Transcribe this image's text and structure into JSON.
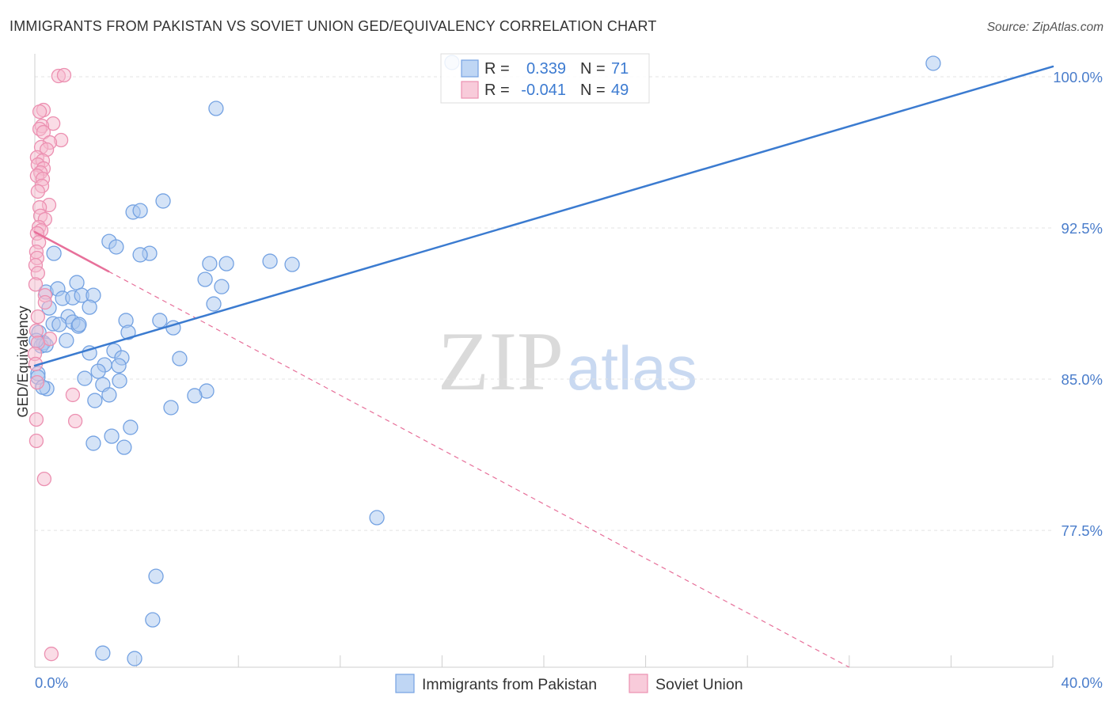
{
  "header": {
    "source": "Source: ZipAtlas.com"
  },
  "watermark": {
    "zip": "ZIP",
    "atlas": "atlas"
  },
  "legend": {
    "r_label": "R =",
    "n_label": "N ="
  },
  "colors": {
    "axis": "#cfcfcf",
    "grid": "#e3e3e3",
    "series": [
      {
        "fill": "#a9c8f0",
        "stroke": "#74a2e2",
        "line": "#3b7bd0"
      },
      {
        "fill": "#f6b9cd",
        "stroke": "#ec90b1",
        "line": "#e7709a"
      }
    ]
  },
  "chart_data": {
    "type": "scatter",
    "title": "IMMIGRANTS FROM PAKISTAN VS SOVIET UNION GED/EQUIVALENCY CORRELATION CHART",
    "ylabel": "GED/Equivalency",
    "xlim": [
      0,
      40
    ],
    "ylim": [
      70.71,
      101.14
    ],
    "x_ticks": [
      0,
      4,
      8,
      12,
      16,
      20,
      24,
      28,
      32,
      36,
      40
    ],
    "x_tick_labels": [
      "0.0%",
      "40.0%"
    ],
    "y_ticks": [
      100,
      92.5,
      85,
      77.5
    ],
    "y_tick_labels": [
      "100.0%",
      "92.5%",
      "85.0%",
      "77.5%"
    ],
    "grid": true,
    "legend_position": "top-center",
    "series": [
      {
        "name": "Immigrants from Pakistan",
        "r": "0.339",
        "n": "71",
        "trend": {
          "x0": 0,
          "y0": 85.67,
          "x1": 40,
          "y1": 100.51
        },
        "points": [
          [
            16.39,
            100.71
          ],
          [
            35.3,
            100.67
          ],
          [
            7.12,
            98.43
          ],
          [
            5.04,
            93.84
          ],
          [
            3.86,
            93.29
          ],
          [
            4.14,
            93.36
          ],
          [
            2.92,
            91.83
          ],
          [
            3.2,
            91.56
          ],
          [
            4.51,
            91.24
          ],
          [
            4.14,
            91.17
          ],
          [
            0.75,
            91.24
          ],
          [
            6.87,
            90.73
          ],
          [
            7.53,
            90.73
          ],
          [
            9.24,
            90.85
          ],
          [
            10.11,
            90.69
          ],
          [
            6.69,
            89.95
          ],
          [
            7.34,
            89.59
          ],
          [
            1.65,
            89.79
          ],
          [
            0.44,
            89.32
          ],
          [
            0.9,
            89.48
          ],
          [
            1.09,
            89.01
          ],
          [
            1.49,
            89.04
          ],
          [
            1.84,
            89.16
          ],
          [
            2.3,
            89.16
          ],
          [
            2.15,
            88.57
          ],
          [
            7.03,
            88.73
          ],
          [
            0.56,
            88.53
          ],
          [
            1.31,
            88.1
          ],
          [
            0.72,
            87.75
          ],
          [
            0.96,
            87.71
          ],
          [
            1.49,
            87.83
          ],
          [
            1.71,
            87.63
          ],
          [
            3.58,
            87.91
          ],
          [
            4.91,
            87.91
          ],
          [
            5.44,
            87.55
          ],
          [
            3.67,
            87.32
          ],
          [
            0.34,
            86.81
          ],
          [
            0.16,
            87.32
          ],
          [
            1.24,
            86.92
          ],
          [
            3.11,
            86.41
          ],
          [
            2.15,
            86.3
          ],
          [
            3.42,
            86.06
          ],
          [
            5.69,
            86.02
          ],
          [
            2.74,
            85.71
          ],
          [
            3.3,
            85.67
          ],
          [
            2.49,
            85.39
          ],
          [
            0.12,
            85.28
          ],
          [
            1.96,
            85.04
          ],
          [
            3.33,
            84.92
          ],
          [
            2.67,
            84.73
          ],
          [
            0.47,
            84.53
          ],
          [
            6.75,
            84.41
          ],
          [
            6.28,
            84.18
          ],
          [
            2.92,
            84.22
          ],
          [
            2.36,
            83.94
          ],
          [
            5.35,
            83.59
          ],
          [
            3.76,
            82.61
          ],
          [
            3.02,
            82.17
          ],
          [
            2.3,
            81.82
          ],
          [
            3.51,
            81.62
          ],
          [
            13.44,
            78.13
          ],
          [
            4.76,
            75.22
          ],
          [
            4.63,
            73.06
          ],
          [
            2.67,
            71.41
          ],
          [
            3.92,
            71.14
          ],
          [
            0.25,
            86.65
          ],
          [
            0.44,
            86.69
          ],
          [
            0.06,
            86.92
          ],
          [
            1.74,
            87.71
          ],
          [
            0.12,
            85.1
          ],
          [
            0.31,
            84.6
          ]
        ]
      },
      {
        "name": "Soviet Union",
        "r": "-0.041",
        "n": "49",
        "trend": {
          "x0": 0,
          "y0": 92.3,
          "x1": 32.0,
          "y1": 70.71,
          "solid_until": 2.9
        },
        "points": [
          [
            0.93,
            100.04
          ],
          [
            1.15,
            100.08
          ],
          [
            0.34,
            98.35
          ],
          [
            0.19,
            98.27
          ],
          [
            0.72,
            97.68
          ],
          [
            0.28,
            97.56
          ],
          [
            0.19,
            97.41
          ],
          [
            0.34,
            97.25
          ],
          [
            1.03,
            96.86
          ],
          [
            0.59,
            96.74
          ],
          [
            0.25,
            96.51
          ],
          [
            0.47,
            96.39
          ],
          [
            0.09,
            96.0
          ],
          [
            0.31,
            95.84
          ],
          [
            0.12,
            95.64
          ],
          [
            0.34,
            95.45
          ],
          [
            0.22,
            95.25
          ],
          [
            0.09,
            95.09
          ],
          [
            0.31,
            94.93
          ],
          [
            0.28,
            94.58
          ],
          [
            0.12,
            94.31
          ],
          [
            0.56,
            93.64
          ],
          [
            0.19,
            93.52
          ],
          [
            0.22,
            93.1
          ],
          [
            0.4,
            92.93
          ],
          [
            0.16,
            92.54
          ],
          [
            0.25,
            92.38
          ],
          [
            0.09,
            92.23
          ],
          [
            0.16,
            91.79
          ],
          [
            0.06,
            91.32
          ],
          [
            0.09,
            91.01
          ],
          [
            0.03,
            90.65
          ],
          [
            0.12,
            90.26
          ],
          [
            0.03,
            89.7
          ],
          [
            0.4,
            89.16
          ],
          [
            0.4,
            88.81
          ],
          [
            0.12,
            88.1
          ],
          [
            0.06,
            87.4
          ],
          [
            0.59,
            87.0
          ],
          [
            0.12,
            86.8
          ],
          [
            0.0,
            86.26
          ],
          [
            0.03,
            85.75
          ],
          [
            0.09,
            84.84
          ],
          [
            1.49,
            84.22
          ],
          [
            1.59,
            82.92
          ],
          [
            0.06,
            83.0
          ],
          [
            0.06,
            81.94
          ],
          [
            0.37,
            80.05
          ],
          [
            0.65,
            71.37
          ]
        ]
      }
    ]
  }
}
